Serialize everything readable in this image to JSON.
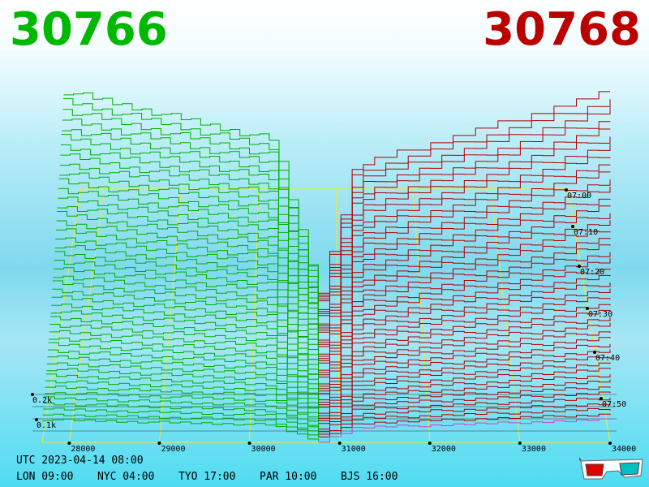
{
  "header": {
    "bid_price": "30766",
    "ask_price": "30768",
    "bid_color": "#00b800",
    "ask_color": "#bb0000"
  },
  "footer": {
    "utc": "UTC 2023-04-14 08:00",
    "zones": [
      "LON 09:00",
      "NYC 04:00",
      "TYO 17:00",
      "PAR 10:00",
      "BJS 16:00"
    ]
  },
  "icons": {
    "glasses": "3d-glasses-icon"
  },
  "chart_data": {
    "type": "area",
    "x_ticks": [
      "28000",
      "29000",
      "30000",
      "31000",
      "32000",
      "33000",
      "34000"
    ],
    "x_range": [
      27700,
      34000
    ],
    "time_ticks": [
      "07:00",
      "07:10",
      "07:20",
      "07:30",
      "07:40",
      "07:50"
    ],
    "volume_ticks": [
      "0.2k",
      "0.1k"
    ],
    "bid_series_color": "#00b000",
    "ask_series_color": "#b00000",
    "bid_price": 30766,
    "ask_price": 30768
  }
}
